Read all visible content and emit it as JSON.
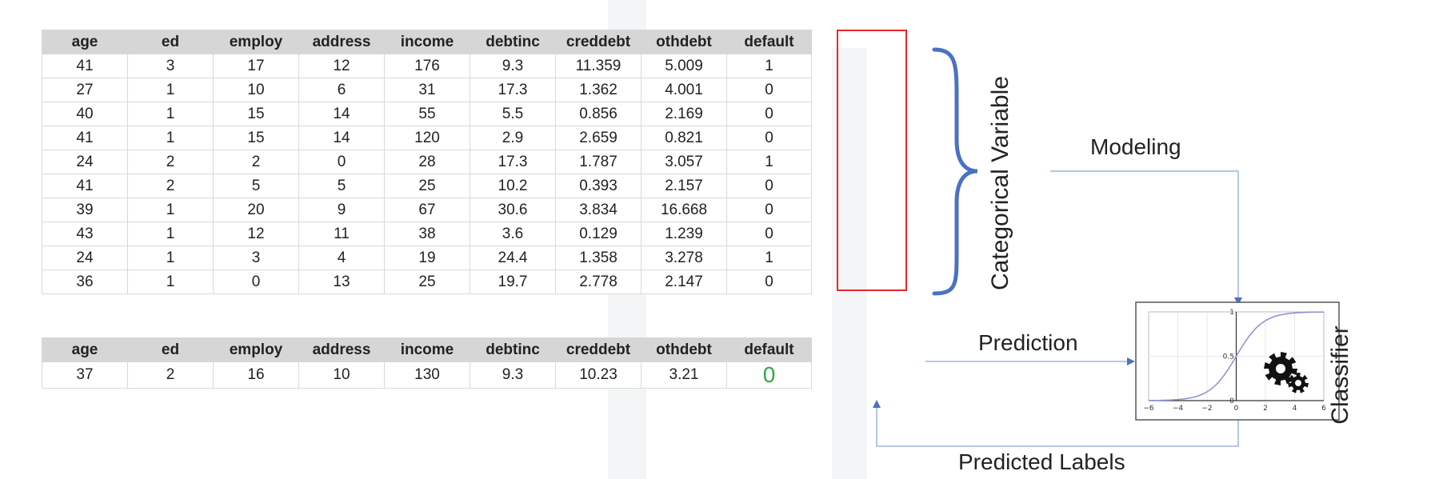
{
  "table": {
    "columns": [
      "age",
      "ed",
      "employ",
      "address",
      "income",
      "debtinc",
      "creddebt",
      "othdebt",
      "default"
    ],
    "rows": [
      [
        "41",
        "3",
        "17",
        "12",
        "176",
        "9.3",
        "11.359",
        "5.009",
        "1"
      ],
      [
        "27",
        "1",
        "10",
        "6",
        "31",
        "17.3",
        "1.362",
        "4.001",
        "0"
      ],
      [
        "40",
        "1",
        "15",
        "14",
        "55",
        "5.5",
        "0.856",
        "2.169",
        "0"
      ],
      [
        "41",
        "1",
        "15",
        "14",
        "120",
        "2.9",
        "2.659",
        "0.821",
        "0"
      ],
      [
        "24",
        "2",
        "2",
        "0",
        "28",
        "17.3",
        "1.787",
        "3.057",
        "1"
      ],
      [
        "41",
        "2",
        "5",
        "5",
        "25",
        "10.2",
        "0.393",
        "2.157",
        "0"
      ],
      [
        "39",
        "1",
        "20",
        "9",
        "67",
        "30.6",
        "3.834",
        "16.668",
        "0"
      ],
      [
        "43",
        "1",
        "12",
        "11",
        "38",
        "3.6",
        "0.129",
        "1.239",
        "0"
      ],
      [
        "24",
        "1",
        "3",
        "4",
        "19",
        "24.4",
        "1.358",
        "3.278",
        "1"
      ],
      [
        "36",
        "1",
        "0",
        "13",
        "25",
        "19.7",
        "2.778",
        "2.147",
        "0"
      ]
    ]
  },
  "test_table": {
    "columns": [
      "age",
      "ed",
      "employ",
      "address",
      "income",
      "debtinc",
      "creddebt",
      "othdebt",
      "default"
    ],
    "row": [
      "37",
      "2",
      "16",
      "10",
      "130",
      "9.3",
      "10.23",
      "3.21",
      "0"
    ]
  },
  "labels": {
    "categorical_variable": "Categorical Variable",
    "modeling": "Modeling",
    "prediction": "Prediction",
    "classifier": "Classifier",
    "predicted_labels": "Predicted Labels"
  },
  "sigmoid_plot": {
    "x_ticks": [
      "−6",
      "−4",
      "−2",
      "0",
      "2",
      "4",
      "6"
    ],
    "y_ticks": [
      "0",
      "0.5",
      "1"
    ]
  },
  "icons": {
    "classifier": "gears-icon",
    "brace": "curly-brace-icon"
  },
  "colors": {
    "brace": "#4a72c4",
    "arrow": "#4a72c4",
    "highlight_border": "#e8262a",
    "predicted_value": "#2ea84a",
    "header_bg": "#d6d6d6",
    "sigmoid_curve": "#8b8fd6"
  }
}
